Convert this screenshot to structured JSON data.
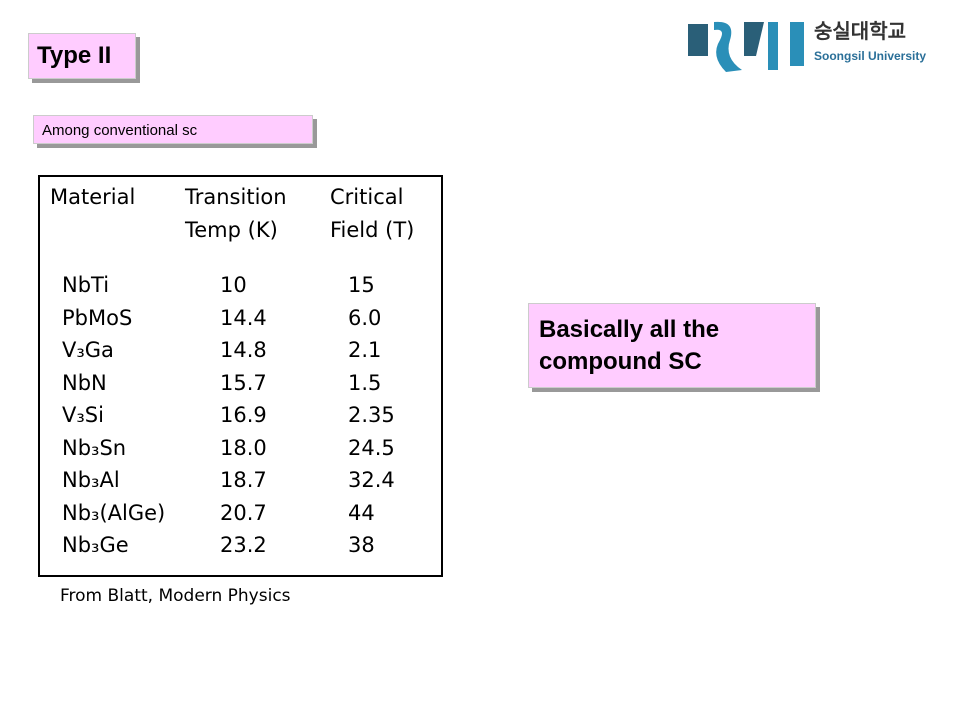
{
  "header": {
    "title": "Type II",
    "subtitle": "Among conventional sc"
  },
  "logo": {
    "korean": "숭실대학교",
    "english": "Soongsil University"
  },
  "table": {
    "columns": [
      [
        "Material"
      ],
      [
        "Transition",
        "Temp (K)"
      ],
      [
        "Critical",
        "Field (T)"
      ]
    ],
    "rows": [
      [
        "NbTi",
        "10",
        "15"
      ],
      [
        "PbMoS",
        "14.4",
        "6.0"
      ],
      [
        "V₃Ga",
        "14.8",
        "2.1"
      ],
      [
        "NbN",
        "15.7",
        "1.5"
      ],
      [
        "V₃Si",
        "16.9",
        "2.35"
      ],
      [
        "Nb₃Sn",
        "18.0",
        "24.5"
      ],
      [
        "Nb₃Al",
        "18.7",
        "32.4"
      ],
      [
        "Nb₃(AlGe)",
        "20.7",
        "44"
      ],
      [
        "Nb₃Ge",
        "23.2",
        "38"
      ]
    ],
    "caption": "From Blatt, Modern Physics"
  },
  "callout": {
    "lines": [
      "Basically all the",
      "compound SC"
    ]
  }
}
